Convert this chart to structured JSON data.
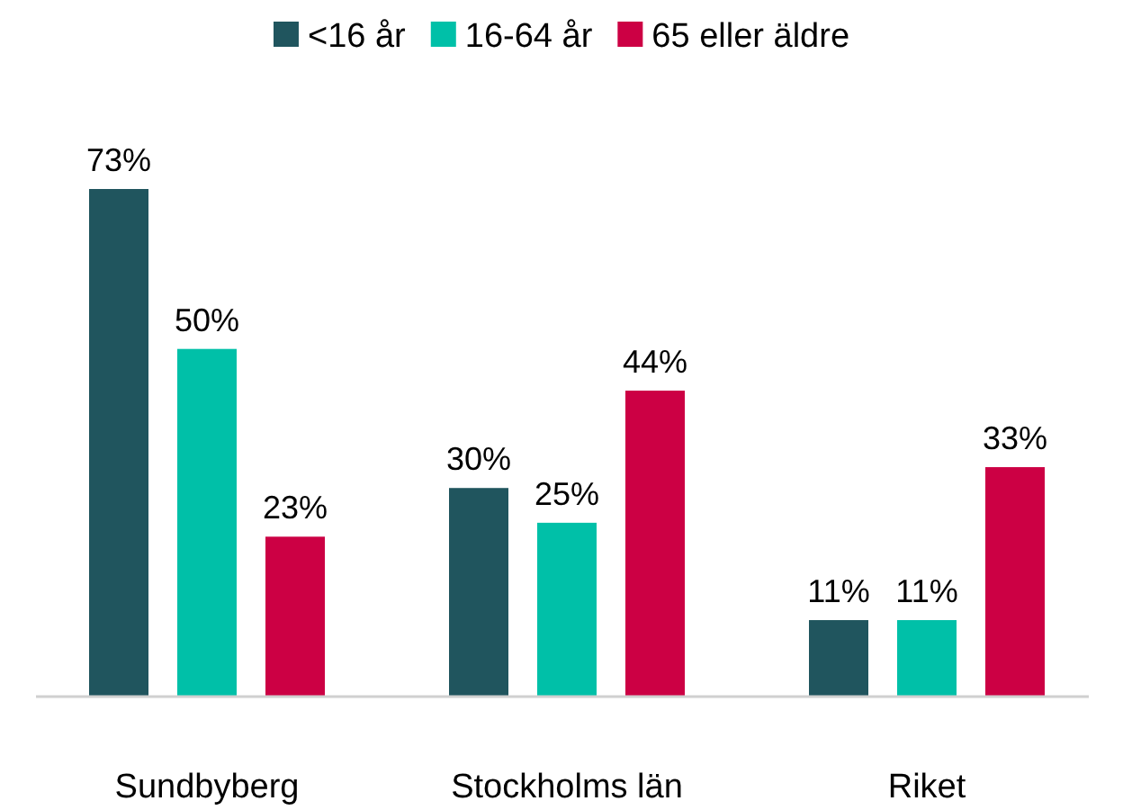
{
  "chart_data": {
    "type": "bar",
    "categories": [
      "Sundbyberg",
      "Stockholms län",
      "Riket"
    ],
    "series": [
      {
        "name": "<16 år",
        "color": "#20555e",
        "values": [
          73,
          30,
          11
        ],
        "value_labels": [
          "73%",
          "30%",
          "11%"
        ]
      },
      {
        "name": "16-64 år",
        "color": "#00c0a8",
        "values": [
          50,
          25,
          11
        ],
        "value_labels": [
          "50%",
          "25%",
          "11%"
        ]
      },
      {
        "name": "65 eller äldre",
        "color": "#cc0044",
        "values": [
          23,
          44,
          33
        ],
        "value_labels": [
          "23%",
          "44%",
          "33%"
        ]
      }
    ],
    "legend": "top"
  }
}
